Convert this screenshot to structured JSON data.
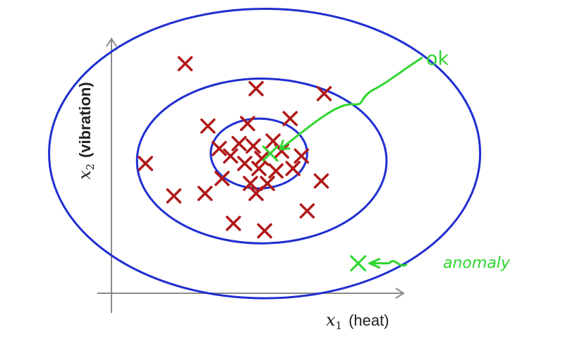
{
  "colors": {
    "axis": "#8a8a8a",
    "contour": "#1f2fd0",
    "normal_point": "#b01818",
    "annotation": "#2fd62f"
  },
  "chart_data": {
    "type": "scatter",
    "xlabel_var": "x",
    "xlabel_sub": "1",
    "xlabel_text": "(heat)",
    "ylabel_var": "x",
    "ylabel_sub": "2",
    "ylabel_text": "(vibration)",
    "grid": false,
    "points": [
      {
        "x": 2.6,
        "y": 9.2
      },
      {
        "x": 5.1,
        "y": 8.2
      },
      {
        "x": 7.5,
        "y": 8.0
      },
      {
        "x": 6.3,
        "y": 7.0
      },
      {
        "x": 3.4,
        "y": 6.7
      },
      {
        "x": 4.8,
        "y": 6.8
      },
      {
        "x": 3.8,
        "y": 5.8
      },
      {
        "x": 4.5,
        "y": 6.0
      },
      {
        "x": 5.0,
        "y": 5.9
      },
      {
        "x": 5.7,
        "y": 6.1
      },
      {
        "x": 6.0,
        "y": 5.7
      },
      {
        "x": 4.2,
        "y": 5.5
      },
      {
        "x": 5.3,
        "y": 5.4
      },
      {
        "x": 6.7,
        "y": 5.5
      },
      {
        "x": 4.7,
        "y": 5.2
      },
      {
        "x": 5.2,
        "y": 5.0
      },
      {
        "x": 5.8,
        "y": 4.9
      },
      {
        "x": 6.4,
        "y": 5.0
      },
      {
        "x": 3.9,
        "y": 4.6
      },
      {
        "x": 4.9,
        "y": 4.4
      },
      {
        "x": 5.5,
        "y": 4.4
      },
      {
        "x": 7.4,
        "y": 4.5
      },
      {
        "x": 1.2,
        "y": 5.2
      },
      {
        "x": 2.2,
        "y": 3.9
      },
      {
        "x": 3.3,
        "y": 4.0
      },
      {
        "x": 5.1,
        "y": 4.0
      },
      {
        "x": 6.9,
        "y": 3.3
      },
      {
        "x": 4.3,
        "y": 2.8
      },
      {
        "x": 5.4,
        "y": 2.5
      }
    ],
    "highlighted_points": [
      {
        "x": 5.6,
        "y": 5.6,
        "label": "ok"
      },
      {
        "x": 8.7,
        "y": 1.2,
        "label": "anomaly"
      }
    ],
    "contours": [
      {
        "cx": 5.2,
        "cy": 5.6,
        "rx": 1.7,
        "ry": 1.4
      },
      {
        "cx": 5.3,
        "cy": 5.3,
        "rx": 4.4,
        "ry": 3.3
      },
      {
        "cx": 5.4,
        "cy": 5.6,
        "rx": 7.6,
        "ry": 5.8
      }
    ],
    "annotations": [
      "ok",
      "anomaly"
    ]
  }
}
